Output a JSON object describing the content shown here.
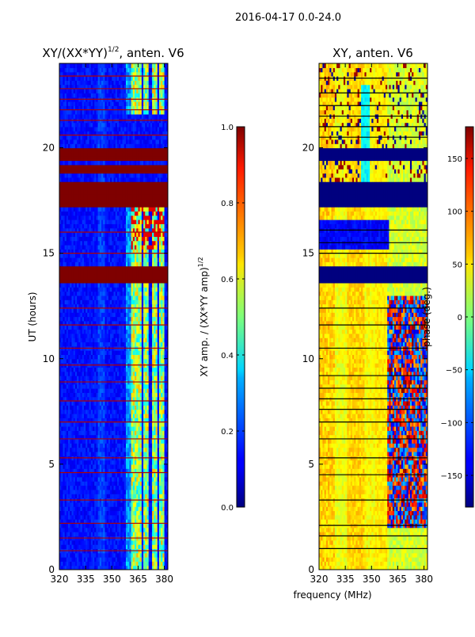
{
  "figure": {
    "suptitle": "2016-04-17 0.0-24.0",
    "xlabel": "frequency (MHz)"
  },
  "chart_data": [
    {
      "type": "heatmap",
      "title_main": "XY/(XX*YY)",
      "title_sup": "1/2",
      "title_rest": ", anten. V6",
      "ylabel": "UT (hours)",
      "xlim": [
        320,
        382
      ],
      "ylim": [
        0,
        24
      ],
      "xticks": [
        320,
        335,
        350,
        365,
        380
      ],
      "yticks": [
        0,
        5,
        10,
        15,
        20
      ],
      "colorbar": {
        "label_main": "XY amp. / (XX*YY amp)",
        "label_sup": "1/2",
        "range": [
          0.0,
          1.0
        ],
        "ticks": [
          "0.0",
          "0.2",
          "0.4",
          "0.6",
          "0.8",
          "1.0"
        ],
        "tick_values": [
          0.0,
          0.2,
          0.4,
          0.6,
          0.8,
          1.0
        ]
      },
      "saturated_bands_ut": [
        [
          13.6,
          14.4
        ],
        [
          17.3,
          18.4
        ],
        [
          18.9,
          19.2
        ],
        [
          19.5,
          20.1
        ]
      ],
      "rfi_lines_ut": [
        0.9,
        1.5,
        2.2,
        3.3,
        4.6,
        5.3,
        6.2,
        7.0,
        8.0,
        8.9,
        9.7,
        10.5,
        11.6,
        12.4,
        15.0,
        16.0,
        20.6,
        21.3,
        21.8,
        22.3,
        22.8,
        23.4
      ],
      "bright_columns_mhz": [
        [
          361,
          367
        ],
        [
          368,
          371
        ],
        [
          373,
          376
        ],
        [
          377,
          380
        ]
      ],
      "bright_region_ut": [
        [
          0,
          13.6
        ],
        [
          14.4,
          17.3
        ],
        [
          21.6,
          24
        ]
      ]
    },
    {
      "type": "heatmap",
      "title": "XY, anten. V6",
      "xlim": [
        320,
        382
      ],
      "ylim": [
        0,
        24
      ],
      "xticks": [
        320,
        335,
        350,
        365,
        380
      ],
      "yticks": [
        0,
        5,
        10,
        15,
        20
      ],
      "colorbar": {
        "label": "phase (deg.)",
        "range": [
          -180,
          180
        ],
        "ticks": [
          "150",
          "100",
          "50",
          "0",
          "−50",
          "−100",
          "−150"
        ],
        "tick_values": [
          150,
          100,
          50,
          0,
          -50,
          -100,
          -150
        ]
      },
      "masked_bands_ut": [
        [
          13.6,
          14.4
        ],
        [
          17.3,
          18.4
        ],
        [
          19.5,
          20.1
        ]
      ],
      "black_lines_ut": [
        1.0,
        1.6,
        2.1,
        3.3,
        4.5,
        5.3,
        6.2,
        7.0,
        7.6,
        8.1,
        8.6,
        9.2,
        10.5,
        11.6,
        12.4,
        15.0,
        15.5,
        16.1,
        20.5,
        21.0,
        21.5,
        22.0,
        22.6,
        23.3
      ],
      "phase_jump_mhz": 359,
      "phase_jump_ut": [
        2,
        13
      ]
    }
  ]
}
